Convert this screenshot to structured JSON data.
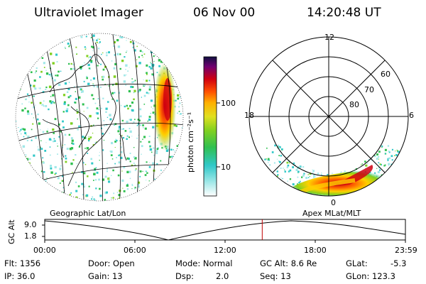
{
  "header": {
    "instrument": "Ultraviolet Imager",
    "date": "06 Nov 00",
    "time": "14:20:48 UT"
  },
  "left_panel": {
    "label": "Geographic Lat/Lon"
  },
  "colorbar": {
    "unit_label": "photon cm⁻²s⁻¹",
    "ticks": [
      "100",
      "10"
    ],
    "scale": "log",
    "colors": [
      "#ffffff",
      "#a0e8e8",
      "#30c8c8",
      "#30c050",
      "#80d020",
      "#e0e020",
      "#ffb000",
      "#ff5000",
      "#d00010",
      "#700070",
      "#101040"
    ]
  },
  "right_panel": {
    "label": "Apex MLat/MLT",
    "mlt_labels": [
      "12",
      "18",
      "6",
      "0"
    ],
    "mlat_labels": [
      "60",
      "70",
      "80"
    ]
  },
  "timeline": {
    "axis_label": "GC Alt",
    "y_ticks": [
      "9.0",
      "1.8"
    ],
    "x_ticks": [
      "00:00",
      "06:00",
      "12:00",
      "18:00",
      "23:59"
    ],
    "current_time_fraction": 0.603
  },
  "status": {
    "flt": "Flt: 1356",
    "ip": "IP: 36.0",
    "door": "Door: Open",
    "gain": "Gain: 13",
    "mode": "Mode: Normal",
    "dsp": "Dsp:",
    "dsp_value": "2.0",
    "gc_alt": "GC Alt: 8.6 Re",
    "seq": "Seq: 13",
    "glat": "GLat:",
    "glat_value": "-5.3",
    "glon": "GLon: 123.3"
  }
}
